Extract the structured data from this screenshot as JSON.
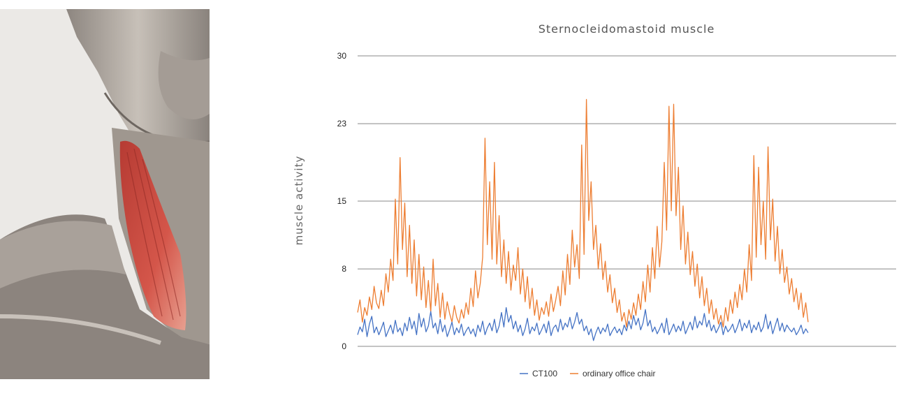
{
  "illustration": {
    "subject": "neck-muscle-anatomy",
    "highlight_color": "#c8433a"
  },
  "chart_data": {
    "type": "line",
    "title": "Sternocleidomastoid muscle",
    "xlabel": "",
    "ylabel": "muscle activity",
    "yticks": [
      0,
      8,
      15,
      23,
      30
    ],
    "ylim": [
      0,
      30
    ],
    "grid": true,
    "legend": "bottom-center",
    "series": [
      {
        "name": "CT100",
        "color": "#4472c4",
        "values": [
          1.2,
          2.0,
          1.5,
          2.8,
          1.0,
          2.3,
          3.1,
          1.4,
          2.0,
          1.2,
          1.8,
          2.5,
          1.0,
          1.6,
          2.2,
          1.3,
          2.7,
          1.5,
          1.9,
          1.1,
          2.4,
          1.6,
          3.0,
          1.8,
          2.6,
          1.2,
          3.4,
          2.0,
          2.9,
          1.5,
          2.1,
          3.6,
          1.9,
          2.4,
          1.3,
          2.8,
          1.5,
          2.2,
          1.0,
          1.7,
          2.5,
          1.2,
          1.9,
          1.4,
          2.3,
          1.1,
          1.6,
          2.0,
          1.3,
          1.8,
          1.0,
          2.2,
          1.5,
          2.6,
          1.2,
          1.9,
          2.4,
          1.6,
          2.8,
          1.4,
          2.1,
          3.5,
          2.0,
          4.0,
          2.5,
          3.2,
          1.8,
          2.6,
          1.5,
          2.2,
          1.1,
          1.8,
          2.9,
          1.3,
          2.0,
          1.6,
          2.4,
          1.2,
          1.7,
          2.3,
          1.4,
          2.6,
          1.1,
          1.9,
          2.2,
          1.5,
          2.8,
          1.7,
          2.4,
          2.0,
          3.0,
          1.8,
          2.5,
          3.5,
          2.3,
          2.8,
          1.6,
          2.1,
          1.2,
          1.8,
          0.6,
          1.4,
          2.0,
          1.3,
          1.9,
          1.5,
          2.3,
          1.1,
          1.6,
          2.0,
          1.4,
          1.8,
          1.2,
          2.2,
          1.6,
          2.6,
          1.8,
          3.2,
          2.2,
          2.9,
          1.7,
          2.4,
          3.8,
          2.1,
          2.7,
          1.5,
          2.0,
          1.3,
          1.8,
          2.4,
          1.4,
          2.9,
          1.2,
          1.7,
          2.3,
          1.5,
          2.1,
          1.6,
          2.6,
          1.3,
          1.9,
          2.5,
          1.7,
          3.1,
          1.9,
          2.6,
          2.2,
          3.4,
          2.0,
          2.7,
          1.6,
          2.2,
          1.4,
          1.9,
          2.5,
          1.2,
          2.1,
          1.5,
          1.8,
          2.3,
          1.4,
          2.0,
          2.8,
          1.6,
          2.4,
          1.9,
          2.7,
          1.4,
          2.2,
          1.7,
          2.5,
          1.5,
          2.0,
          3.3,
          1.8,
          2.6,
          1.3,
          2.1,
          2.9,
          1.6,
          2.4,
          1.5,
          2.2,
          1.8,
          1.5,
          1.9,
          1.2,
          1.6,
          2.2,
          1.3,
          1.8,
          1.4
        ]
      },
      {
        "name": "ordinary office chair",
        "color": "#ed7d31",
        "values": [
          3.5,
          4.8,
          2.5,
          4.0,
          3.2,
          5.1,
          3.8,
          6.2,
          4.5,
          3.9,
          5.8,
          4.2,
          7.5,
          5.6,
          9.0,
          6.8,
          15.2,
          8.5,
          19.5,
          10.0,
          14.8,
          7.2,
          12.5,
          6.5,
          11.0,
          5.2,
          9.5,
          4.8,
          8.2,
          4.0,
          6.8,
          3.5,
          9.0,
          4.2,
          6.5,
          3.0,
          5.5,
          2.8,
          4.6,
          3.4,
          2.5,
          4.2,
          3.0,
          2.4,
          3.8,
          2.9,
          4.5,
          3.3,
          6.0,
          4.1,
          7.8,
          5.0,
          6.5,
          9.2,
          21.5,
          10.5,
          17.0,
          9.0,
          19.0,
          8.5,
          13.5,
          7.2,
          11.0,
          6.5,
          9.8,
          5.8,
          8.4,
          6.8,
          10.2,
          5.4,
          8.0,
          4.6,
          7.2,
          3.9,
          6.0,
          3.2,
          4.8,
          2.7,
          4.0,
          3.3,
          4.6,
          3.1,
          5.4,
          3.6,
          4.8,
          6.2,
          4.2,
          7.8,
          5.3,
          9.5,
          6.4,
          12.0,
          8.2,
          10.5,
          7.0,
          20.8,
          9.5,
          25.5,
          13.0,
          17.0,
          10.0,
          12.5,
          8.0,
          10.6,
          6.9,
          8.8,
          5.6,
          7.4,
          4.5,
          6.0,
          3.5,
          4.8,
          2.6,
          3.5,
          2.0,
          3.8,
          2.8,
          4.5,
          3.2,
          5.4,
          3.8,
          6.7,
          4.6,
          8.4,
          5.6,
          10.2,
          7.0,
          12.4,
          8.2,
          10.8,
          19.0,
          12.0,
          24.8,
          14.0,
          25.0,
          13.5,
          18.5,
          10.0,
          14.5,
          8.5,
          11.8,
          7.4,
          9.8,
          6.2,
          8.5,
          5.0,
          7.2,
          4.2,
          6.0,
          3.4,
          4.8,
          2.8,
          3.9,
          2.3,
          3.2,
          2.0,
          4.0,
          2.6,
          4.8,
          3.4,
          5.6,
          4.0,
          6.4,
          4.8,
          8.0,
          5.6,
          10.5,
          6.8,
          19.7,
          9.2,
          18.5,
          10.5,
          15.0,
          9.0,
          20.6,
          11.0,
          15.2,
          8.8,
          12.4,
          7.5,
          10.0,
          6.6,
          8.2,
          5.4,
          7.0,
          4.6,
          6.0,
          3.8,
          5.5,
          3.0,
          4.5,
          2.5
        ]
      }
    ]
  }
}
